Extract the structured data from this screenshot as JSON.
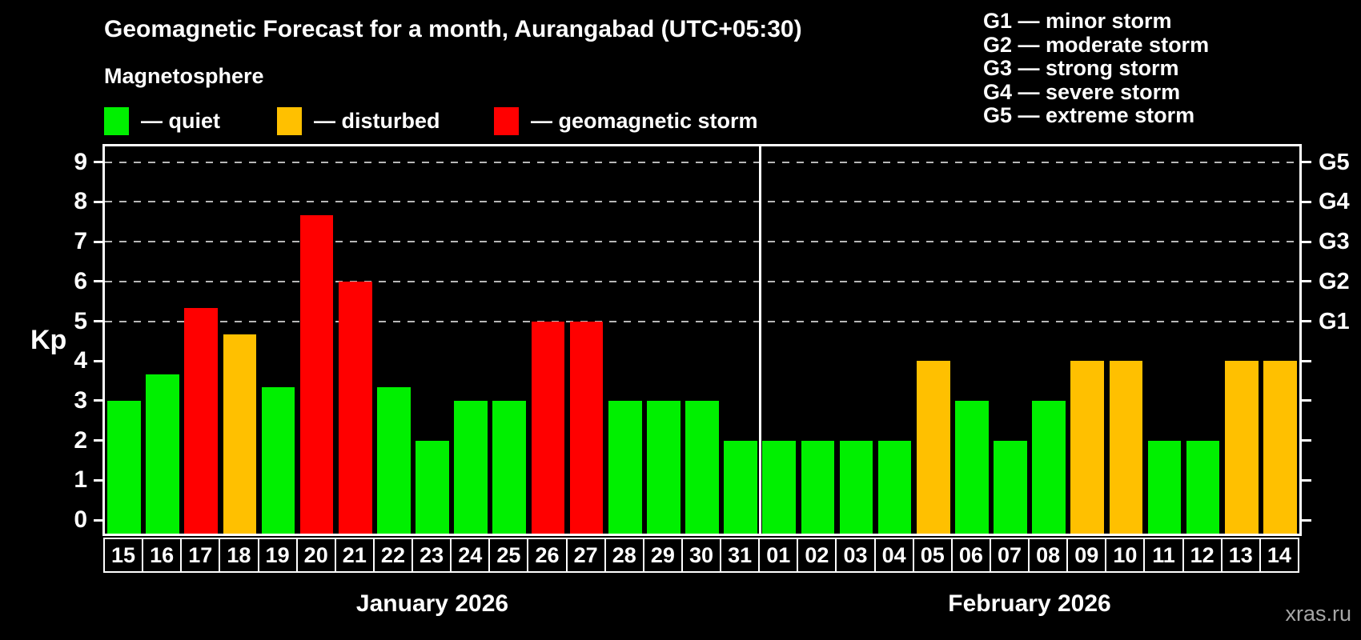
{
  "title": "Geomagnetic Forecast for a month, Aurangabad (UTC+05:30)",
  "subtitle": "Magnetosphere",
  "legend": {
    "quiet_label": "— quiet",
    "disturbed_label": "— disturbed",
    "storm_label": "— geomagnetic storm"
  },
  "g_legend": [
    "G1 — minor storm",
    "G2 — moderate storm",
    "G3 — strong storm",
    "G4 — severe storm",
    "G5 — extreme storm"
  ],
  "watermark": "xras.ru",
  "chart_data": {
    "type": "bar",
    "title": "Geomagnetic Forecast for a month, Aurangabad (UTC+05:30)",
    "y_axis": {
      "label": "Kp",
      "ticks": [
        0,
        1,
        2,
        3,
        4,
        5,
        6,
        7,
        8,
        9
      ],
      "range": [
        0,
        9
      ]
    },
    "right_axis_labels": {
      "5": "G1",
      "6": "G2",
      "7": "G3",
      "8": "G4",
      "9": "G5"
    },
    "gridline_levels": [
      5,
      6,
      7,
      8,
      9
    ],
    "legend_colors": {
      "quiet": "#00F000",
      "disturbed": "#FFC000",
      "storm": "#FF0000"
    },
    "months": [
      {
        "name": "January 2026",
        "days": [
          {
            "date": "15",
            "kp": 3.0,
            "status": "quiet"
          },
          {
            "date": "16",
            "kp": 3.67,
            "status": "quiet"
          },
          {
            "date": "17",
            "kp": 5.33,
            "status": "storm"
          },
          {
            "date": "18",
            "kp": 4.67,
            "status": "disturbed"
          },
          {
            "date": "19",
            "kp": 3.33,
            "status": "quiet"
          },
          {
            "date": "20",
            "kp": 7.67,
            "status": "storm"
          },
          {
            "date": "21",
            "kp": 6.0,
            "status": "storm"
          },
          {
            "date": "22",
            "kp": 3.33,
            "status": "quiet"
          },
          {
            "date": "23",
            "kp": 2.0,
            "status": "quiet"
          },
          {
            "date": "24",
            "kp": 3.0,
            "status": "quiet"
          },
          {
            "date": "25",
            "kp": 3.0,
            "status": "quiet"
          },
          {
            "date": "26",
            "kp": 5.0,
            "status": "storm"
          },
          {
            "date": "27",
            "kp": 5.0,
            "status": "storm"
          },
          {
            "date": "28",
            "kp": 3.0,
            "status": "quiet"
          },
          {
            "date": "29",
            "kp": 3.0,
            "status": "quiet"
          },
          {
            "date": "30",
            "kp": 3.0,
            "status": "quiet"
          },
          {
            "date": "31",
            "kp": 2.0,
            "status": "quiet"
          }
        ]
      },
      {
        "name": "February 2026",
        "days": [
          {
            "date": "01",
            "kp": 2.0,
            "status": "quiet"
          },
          {
            "date": "02",
            "kp": 2.0,
            "status": "quiet"
          },
          {
            "date": "03",
            "kp": 2.0,
            "status": "quiet"
          },
          {
            "date": "04",
            "kp": 2.0,
            "status": "quiet"
          },
          {
            "date": "05",
            "kp": 4.0,
            "status": "disturbed"
          },
          {
            "date": "06",
            "kp": 3.0,
            "status": "quiet"
          },
          {
            "date": "07",
            "kp": 2.0,
            "status": "quiet"
          },
          {
            "date": "08",
            "kp": 3.0,
            "status": "quiet"
          },
          {
            "date": "09",
            "kp": 4.0,
            "status": "disturbed"
          },
          {
            "date": "10",
            "kp": 4.0,
            "status": "disturbed"
          },
          {
            "date": "11",
            "kp": 2.0,
            "status": "quiet"
          },
          {
            "date": "12",
            "kp": 2.0,
            "status": "quiet"
          },
          {
            "date": "13",
            "kp": 4.0,
            "status": "disturbed"
          },
          {
            "date": "14",
            "kp": 4.0,
            "status": "disturbed"
          }
        ]
      }
    ]
  }
}
